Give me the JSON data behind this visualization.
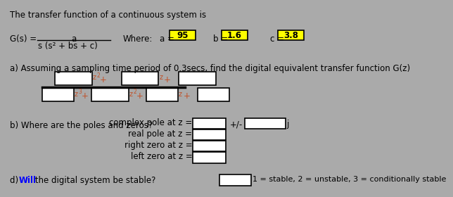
{
  "bg_color": "#aaaaaa",
  "title_text": "The transfer function of a continuous system is",
  "gs_label": "G(s) =",
  "numerator": "a",
  "denominator": "s (s² + bs + c)",
  "where_text": "Where:",
  "a_label": "a =",
  "a_val": "95",
  "b_label": "b =",
  "b_val": "1.6",
  "c_label": "c =",
  "c_val": "3.8",
  "highlight_color": "#ffff00",
  "part_a_text": "a) Assuming a sampling time period of 0.3secs, find the digital equivalent transfer function G(z)",
  "part_b_text": "b) Where are the poles and zeros?",
  "complex_pole_text": "complex pole at z =",
  "real_pole_text": "real pole at z =",
  "right_zero_text": "right zero at z =",
  "left_zero_text": "left zero at z =",
  "plus_minus": "+/-",
  "j_label": "j",
  "part_d_prefix": "d) ",
  "part_d_will": "Will",
  "part_d_suffix": " the digital system be stable?",
  "part_d_right": "1 = stable, 2 = unstable, 3 = conditionally stable",
  "box_fill": "#ffffff",
  "box_edge": "#000000",
  "font_color": "#000000",
  "will_color": "#0000ff",
  "orange_color": "#c0522a",
  "font_family": "DejaVu Sans",
  "fs_main": 8.5,
  "fs_small": 7.0,
  "fs_super": 5.5
}
